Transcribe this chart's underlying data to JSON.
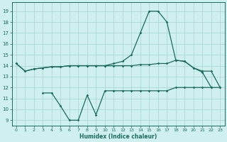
{
  "hours": [
    0,
    1,
    2,
    3,
    4,
    5,
    6,
    7,
    8,
    9,
    10,
    11,
    12,
    13,
    14,
    15,
    16,
    17,
    18,
    19,
    20,
    21,
    22,
    23
  ],
  "top": [
    14.2,
    13.5,
    13.7,
    13.8,
    13.9,
    13.9,
    14.0,
    14.0,
    14.0,
    14.0,
    14.0,
    14.0,
    14.0,
    14.0,
    14.1,
    14.1,
    14.2,
    14.2,
    14.5,
    14.4,
    13.8,
    13.4,
    12.0,
    null
  ],
  "mid": [
    14.2,
    13.5,
    13.7,
    13.8,
    13.9,
    13.9,
    14.0,
    14.0,
    14.0,
    14.0,
    14.0,
    14.2,
    14.4,
    15.0,
    17.0,
    19.0,
    19.0,
    18.0,
    14.5,
    14.4,
    13.8,
    13.5,
    13.5,
    12.0
  ],
  "bot_x": [
    3,
    4,
    5,
    6,
    7,
    8,
    9,
    10,
    11,
    12,
    13,
    14,
    15,
    16,
    17,
    18,
    19,
    20,
    21,
    22,
    23
  ],
  "bot_y": [
    11.5,
    11.5,
    10.3,
    9.0,
    9.0,
    11.3,
    9.5,
    11.7,
    11.7,
    11.7,
    11.7,
    11.7,
    11.7,
    11.7,
    11.7,
    12.0,
    12.0,
    12.0,
    12.0,
    12.0,
    12.0
  ],
  "bg_color": "#cff0ee",
  "line_color": "#1a6b5e",
  "grid_color": "#aad8d3",
  "xlabel": "Humidex (Indice chaleur)",
  "yticks": [
    9,
    10,
    11,
    12,
    13,
    14,
    15,
    16,
    17,
    18,
    19
  ],
  "ylim": [
    8.5,
    19.8
  ],
  "xlim": [
    -0.5,
    23.5
  ],
  "figsize": [
    3.2,
    2.0
  ],
  "dpi": 100
}
